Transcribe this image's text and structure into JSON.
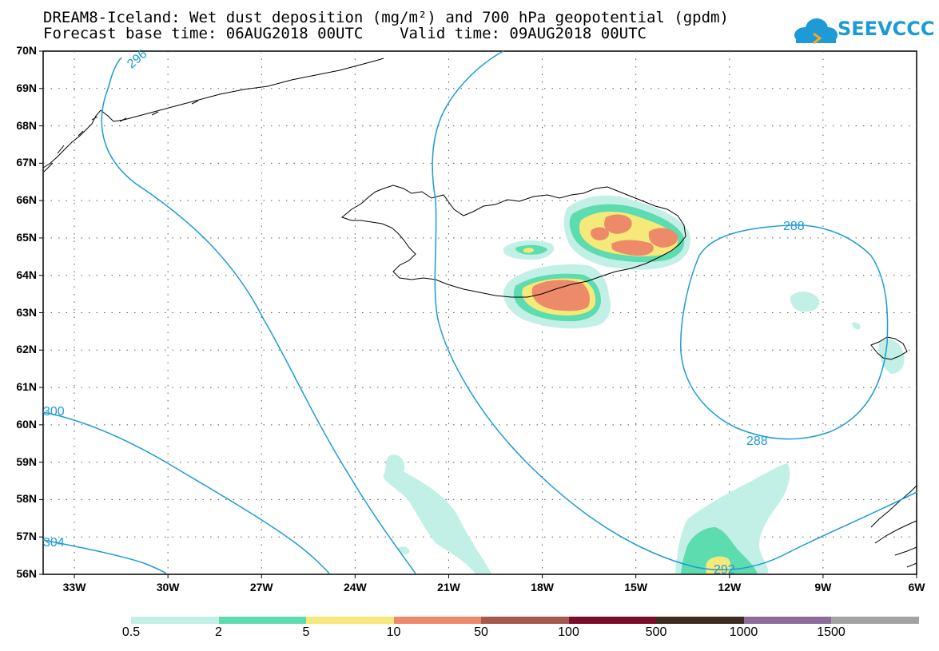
{
  "title": {
    "line1": "DREAM8-Iceland: Wet dust deposition (mg/m²) and 700 hPa geopotential (gpdm)",
    "line2": "Forecast base time: 06AUG2018 00UTC    Valid time: 09AUG2018 00UTC"
  },
  "logo": {
    "text": "SEEVCCC",
    "color": "#1e9ad6"
  },
  "axes": {
    "lat_labels": [
      "70N",
      "69N",
      "68N",
      "67N",
      "66N",
      "65N",
      "64N",
      "63N",
      "62N",
      "61N",
      "60N",
      "59N",
      "58N",
      "57N",
      "56N"
    ],
    "lon_labels": [
      "33W",
      "30W",
      "27W",
      "24W",
      "21W",
      "18W",
      "15W",
      "12W",
      "9W",
      "6W"
    ],
    "lat_range": [
      56,
      70
    ],
    "lon_range": [
      -34,
      -6
    ],
    "grid": "dotted"
  },
  "contours": {
    "color": "#1e9ad6",
    "labels": [
      "296",
      "300",
      "304",
      "288",
      "288",
      "292"
    ]
  },
  "legend": {
    "labels": [
      "0.5",
      "2",
      "5",
      "10",
      "50",
      "100",
      "500",
      "1000",
      "1500"
    ],
    "colors": [
      "#c2efe6",
      "#5ddcaf",
      "#f5e97a",
      "#ec8a6a",
      "#a65a4d",
      "#7a0d2a",
      "#3d2b22",
      "#8e6c9a",
      "#a3a3a3"
    ]
  }
}
